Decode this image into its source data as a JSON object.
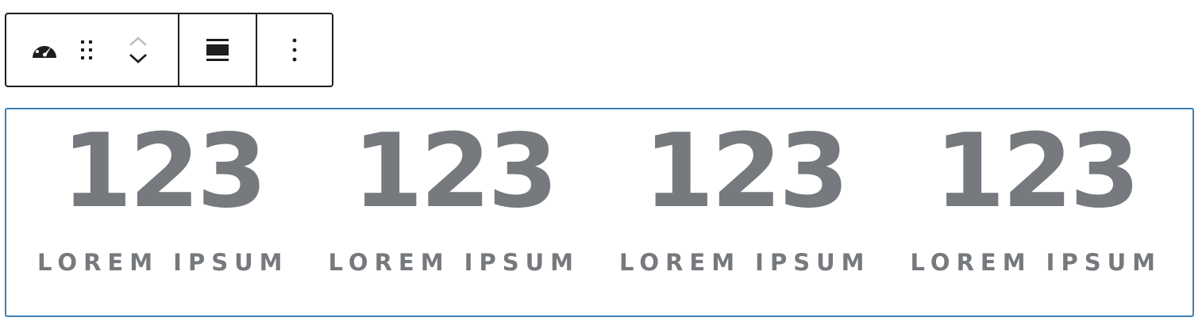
{
  "toolbar": {
    "block_icon": "dashboard-gauge-icon",
    "drag_icon": "drag-handle-icon",
    "move_up_icon": "chevron-up-icon",
    "move_down_icon": "chevron-down-icon",
    "align_icon": "align-wide-icon",
    "more_icon": "more-vertical-icon"
  },
  "counters": [
    {
      "number": "123",
      "label": "LOREM IPSUM"
    },
    {
      "number": "123",
      "label": "LOREM IPSUM"
    },
    {
      "number": "123",
      "label": "LOREM IPSUM"
    },
    {
      "number": "123",
      "label": "LOREM IPSUM"
    }
  ],
  "colors": {
    "text": "#76797d",
    "selected_border": "#3f7fb7",
    "toolbar_border": "#1e1e1e",
    "mover_disabled": "#bdbdbd"
  }
}
